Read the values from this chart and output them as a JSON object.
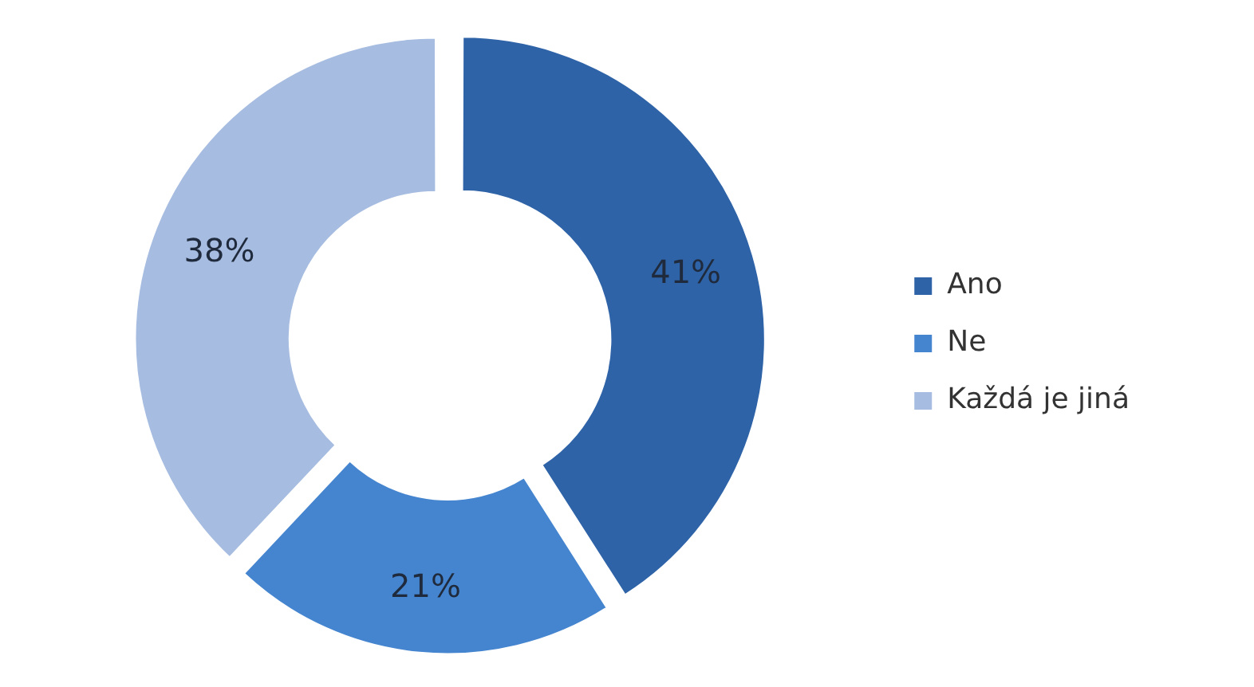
{
  "chart_data": {
    "type": "donut",
    "categories": [
      "Ano",
      "Ne",
      "Každá je jiná"
    ],
    "values": [
      41,
      21,
      38
    ],
    "colors": [
      "#2f63a8",
      "#4585cf",
      "#a6bce0"
    ],
    "value_labels": [
      "41%",
      "21%",
      "38%"
    ],
    "legend": "right"
  }
}
